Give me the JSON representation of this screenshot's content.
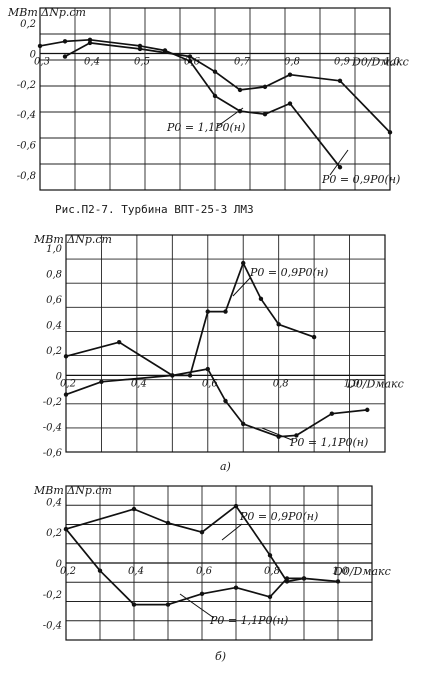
{
  "chart_data": [
    {
      "type": "line",
      "title": "",
      "ylabel": "МВт ΔNр.ст",
      "xlabel": "D0/Dмакс",
      "xlim": [
        0.3,
        1.0
      ],
      "ylim": [
        -0.9,
        0.3
      ],
      "x_ticks": [
        "0,3",
        "0,4",
        "0,5",
        "0,6",
        "0,7",
        "0,8",
        "0,9",
        "1,0"
      ],
      "y_ticks": [
        "0,2",
        "0",
        "-0,2",
        "-0,4",
        "-0,6",
        "-0,8"
      ],
      "series": [
        {
          "name": "P0 = 1,1P0(н)",
          "points": [
            [
              0.3,
              0.05
            ],
            [
              0.35,
              0.08
            ],
            [
              0.4,
              0.09
            ],
            [
              0.5,
              0.05
            ],
            [
              0.55,
              0.02
            ],
            [
              0.6,
              -0.05
            ],
            [
              0.65,
              -0.28
            ],
            [
              0.7,
              -0.38
            ],
            [
              0.75,
              -0.4
            ],
            [
              0.8,
              -0.33
            ],
            [
              0.9,
              -0.75
            ]
          ]
        },
        {
          "name": "P0 = 0,9P0(н)",
          "points": [
            [
              0.35,
              -0.02
            ],
            [
              0.4,
              0.07
            ],
            [
              0.5,
              0.03
            ],
            [
              0.6,
              -0.02
            ],
            [
              0.65,
              -0.12
            ],
            [
              0.7,
              -0.24
            ],
            [
              0.75,
              -0.22
            ],
            [
              0.8,
              -0.14
            ],
            [
              0.9,
              -0.18
            ],
            [
              1.0,
              -0.52
            ]
          ]
        }
      ],
      "caption": "Рис.П2-7. Турбина ВПТ-25-3 ЛМЗ"
    },
    {
      "type": "line",
      "title": "",
      "ylabel": "МВт ΔNр.ст",
      "xlabel": "D0/Dмакс",
      "xlim": [
        0.2,
        1.1
      ],
      "ylim": [
        -0.6,
        1.1
      ],
      "x_ticks": [
        "0,2",
        "0,4",
        "0,6",
        "0,8",
        "1,0"
      ],
      "y_ticks": [
        "1,0",
        "0,8",
        "0,6",
        "0,4",
        "0,2",
        "0",
        "-0,2",
        "-0,4",
        "-0,6"
      ],
      "series": [
        {
          "name": "P0 = 0,9P0(н)",
          "points": [
            [
              0.2,
              -0.15
            ],
            [
              0.3,
              -0.05
            ],
            [
              0.5,
              0.0
            ],
            [
              0.55,
              0.0
            ],
            [
              0.6,
              0.5
            ],
            [
              0.65,
              0.5
            ],
            [
              0.7,
              0.88
            ],
            [
              0.75,
              0.6
            ],
            [
              0.8,
              0.4
            ],
            [
              0.9,
              0.3
            ]
          ]
        },
        {
          "name": "P0 = 1,1P0(н)",
          "points": [
            [
              0.2,
              0.15
            ],
            [
              0.35,
              0.26
            ],
            [
              0.5,
              0.0
            ],
            [
              0.6,
              0.05
            ],
            [
              0.65,
              -0.2
            ],
            [
              0.7,
              -0.38
            ],
            [
              0.8,
              -0.48
            ],
            [
              0.85,
              -0.47
            ],
            [
              0.95,
              -0.3
            ],
            [
              1.05,
              -0.27
            ]
          ]
        }
      ],
      "caption": "а)"
    },
    {
      "type": "line",
      "title": "",
      "ylabel": "МВт ΔNр.ст",
      "xlabel": "D0/Dмакс",
      "xlim": [
        0.2,
        1.1
      ],
      "ylim": [
        -0.5,
        0.5
      ],
      "x_ticks": [
        "0,2",
        "0,4",
        "0,6",
        "0,8",
        "1,0"
      ],
      "y_ticks": [
        "0,4",
        "0,2",
        "0",
        "-0,2",
        "-0,4"
      ],
      "series": [
        {
          "name": "P0 = 0,9P0(н)",
          "points": [
            [
              0.2,
              0.22
            ],
            [
              0.4,
              0.35
            ],
            [
              0.5,
              0.26
            ],
            [
              0.6,
              0.2
            ],
            [
              0.7,
              0.37
            ],
            [
              0.8,
              0.05
            ],
            [
              0.85,
              -0.12
            ],
            [
              0.9,
              -0.1
            ],
            [
              1.0,
              -0.12
            ]
          ]
        },
        {
          "name": "P0 = 1,1P0(н)",
          "points": [
            [
              0.2,
              0.22
            ],
            [
              0.3,
              -0.05
            ],
            [
              0.4,
              -0.27
            ],
            [
              0.5,
              -0.27
            ],
            [
              0.6,
              -0.2
            ],
            [
              0.7,
              -0.16
            ],
            [
              0.8,
              -0.22
            ],
            [
              0.85,
              -0.1
            ],
            [
              0.9,
              -0.1
            ]
          ]
        }
      ],
      "caption": "б)"
    }
  ]
}
